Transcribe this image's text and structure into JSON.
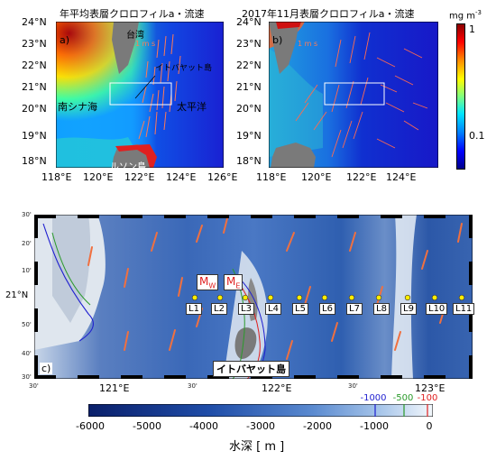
{
  "panel_a": {
    "title": "年平均表層クロロフィルa・流速",
    "letter": "a)",
    "labels": {
      "taiwan": "台湾",
      "speed": "1 m s",
      "south_china_sea": "南シナ海",
      "pacific": "太平洋",
      "luzon": "ルソン島",
      "itbayat": "イトバヤット島"
    },
    "lat_ticks": [
      "24°N",
      "23°N",
      "22°N",
      "21°N",
      "20°N",
      "19°N",
      "18°N"
    ],
    "lon_ticks": [
      "118°E",
      "120°E",
      "122°E",
      "124°E",
      "126°E"
    ]
  },
  "panel_b": {
    "title": "2017年11月表層クロロフィルa・流速",
    "letter": "b)",
    "labels": {
      "speed": "1 m s"
    },
    "lat_ticks": [
      "24°N",
      "23°N",
      "22°N",
      "21°N",
      "20°N",
      "19°N",
      "18°N"
    ],
    "lon_ticks": [
      "118°E",
      "120°E",
      "122°E",
      "124°E"
    ]
  },
  "colorbar_chl": {
    "unit": "mg m",
    "unit_sup": "-3",
    "ticks": [
      "1",
      "0.1"
    ],
    "colors": [
      "#8b0000",
      "#ff0000",
      "#ff8c00",
      "#ffff00",
      "#7fff7f",
      "#00e5ff",
      "#0080ff",
      "#0000ff",
      "#00008b"
    ]
  },
  "panel_c": {
    "letter": "c)",
    "island_label": "イトバヤット島",
    "mw": {
      "main": "M",
      "sub": "W"
    },
    "me": {
      "main": "M",
      "sub": "E"
    },
    "stations": [
      "L1",
      "L2",
      "L3",
      "L4",
      "L5",
      "L6",
      "L7",
      "L8",
      "L9",
      "L10",
      "L11"
    ],
    "lat_ticks": [
      {
        "label": "30'"
      },
      {
        "label": "20'"
      },
      {
        "label": "10'"
      },
      {
        "label": "21°N"
      },
      {
        "label": "50'"
      },
      {
        "label": "40'"
      },
      {
        "label": "30'"
      }
    ],
    "lon_ticks": [
      {
        "label": "30'"
      },
      {
        "label": "121°E"
      },
      {
        "label": "30'"
      },
      {
        "label": "122°E"
      },
      {
        "label": "30'"
      },
      {
        "label": "123°E"
      }
    ]
  },
  "depth_colorbar": {
    "ticks": [
      "-6000",
      "-5000",
      "-4000",
      "-3000",
      "-2000",
      "-1000",
      "0"
    ],
    "contours": [
      {
        "label": "-1000",
        "color": "#1f1fd0"
      },
      {
        "label": "-500",
        "color": "#2a9a2a"
      },
      {
        "label": "-100",
        "color": "#e02020"
      }
    ],
    "title": "水深 [ m ]"
  }
}
